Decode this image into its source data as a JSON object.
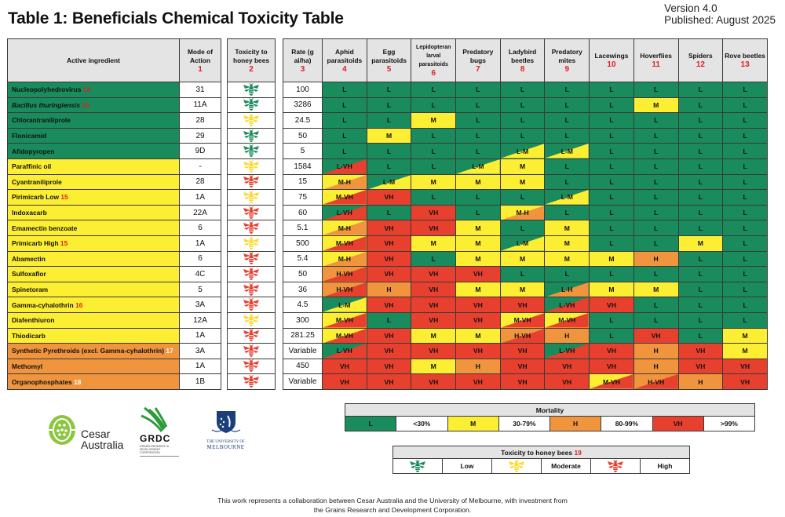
{
  "header": {
    "title": "Table 1: Beneficials Chemical Toxicity Table",
    "version": "Version 4.0",
    "published": "Published: August 2025"
  },
  "colors": {
    "L": "#198b5c",
    "M": "#fcee32",
    "H": "#f0953e",
    "VH": "#e8402e",
    "bee_low": "#198b5c",
    "bee_moderate": "#fcd92e",
    "bee_high": "#e8402e",
    "footnote_red": "#e02020"
  },
  "columns": {
    "active_ingredient": "Active ingredient",
    "mode_of_action": {
      "label": "Mode of Action",
      "num": "1"
    },
    "bee_toxicity": {
      "label": "Toxicity to honey bees",
      "num": "2"
    },
    "rate": {
      "label": "Rate (g ai/ha)",
      "num": "3"
    },
    "groups": [
      {
        "label": "Aphid parasitoids",
        "num": "4"
      },
      {
        "label": "Egg parasitoids",
        "num": "5"
      },
      {
        "label": "Lepidopteran larval parasitoids",
        "num": "6"
      },
      {
        "label": "Predatory bugs",
        "num": "7"
      },
      {
        "label": "Ladybird beetles",
        "num": "8"
      },
      {
        "label": "Predatory mites",
        "num": "9"
      },
      {
        "label": "Lacewings",
        "num": "10"
      },
      {
        "label": "Hoverflies",
        "num": "11"
      },
      {
        "label": "Spiders",
        "num": "12"
      },
      {
        "label": "Rove beetles",
        "num": "13"
      }
    ]
  },
  "rows": [
    {
      "name": "Nucleopolyhedrovirus",
      "note": "14",
      "note_color": "red",
      "italic": false,
      "row_color": "L",
      "moa": "31",
      "bee": "low",
      "rate": "100",
      "values": [
        "L",
        "L",
        "L",
        "L",
        "L",
        "L",
        "L",
        "L",
        "L",
        "L"
      ]
    },
    {
      "name": "Bacillus thuringiensis",
      "note": "14",
      "note_color": "red",
      "italic": true,
      "row_color": "L",
      "moa": "11A",
      "bee": "low",
      "rate": "3286",
      "values": [
        "L",
        "L",
        "L",
        "L",
        "L",
        "L",
        "L",
        "M",
        "L",
        "L"
      ]
    },
    {
      "name": "Chlorantraniliprole",
      "note": "",
      "note_color": "",
      "italic": false,
      "row_color": "L",
      "moa": "28",
      "bee": "moderate",
      "rate": "24.5",
      "values": [
        "L",
        "L",
        "M",
        "L",
        "L",
        "L",
        "L",
        "L",
        "L",
        "L"
      ]
    },
    {
      "name": "Flonicamid",
      "note": "",
      "note_color": "",
      "italic": false,
      "row_color": "L",
      "moa": "29",
      "bee": "low",
      "rate": "50",
      "values": [
        "L",
        "M",
        "L",
        "L",
        "L",
        "L",
        "L",
        "L",
        "L",
        "L"
      ]
    },
    {
      "name": "Afidopyropen",
      "note": "",
      "note_color": "",
      "italic": false,
      "row_color": "L",
      "moa": "9D",
      "bee": "low",
      "rate": "5",
      "values": [
        "L",
        "L",
        "L",
        "L",
        "L-M",
        "L-M",
        "L",
        "L",
        "L",
        "L"
      ]
    },
    {
      "name": "Paraffinic oil",
      "note": "",
      "note_color": "",
      "italic": false,
      "row_color": "M",
      "moa": "-",
      "bee": "moderate",
      "rate": "1584",
      "values": [
        "L-VH",
        "L",
        "L",
        "L-M",
        "M",
        "L",
        "L",
        "L",
        "L",
        "L"
      ]
    },
    {
      "name": "Cyantraniliprole",
      "note": "",
      "note_color": "",
      "italic": false,
      "row_color": "M",
      "moa": "28",
      "bee": "high",
      "rate": "15",
      "values": [
        "M-H",
        "L-M",
        "M",
        "M",
        "M",
        "L",
        "L",
        "L",
        "L",
        "L"
      ]
    },
    {
      "name": "Pirimicarb Low",
      "note": "15",
      "note_color": "red",
      "italic": false,
      "row_color": "M",
      "moa": "1A",
      "bee": "moderate",
      "rate": "75",
      "values": [
        "M-VH",
        "VH",
        "L",
        "L",
        "L",
        "L-M",
        "L",
        "L",
        "L",
        "L"
      ]
    },
    {
      "name": "Indoxacarb",
      "note": "",
      "note_color": "",
      "italic": false,
      "row_color": "M",
      "moa": "22A",
      "bee": "high",
      "rate": "60",
      "values": [
        "L-VH",
        "L",
        "VH",
        "L",
        "M-H",
        "L",
        "L",
        "L",
        "L",
        "L"
      ]
    },
    {
      "name": "Emamectin benzoate",
      "note": "",
      "note_color": "",
      "italic": false,
      "row_color": "M",
      "moa": "6",
      "bee": "high",
      "rate": "5.1",
      "values": [
        "M-H",
        "VH",
        "VH",
        "M",
        "L",
        "M",
        "L",
        "L",
        "L",
        "L"
      ]
    },
    {
      "name": "Primicarb High",
      "note": "15",
      "note_color": "red",
      "italic": false,
      "row_color": "M",
      "moa": "1A",
      "bee": "moderate",
      "rate": "500",
      "values": [
        "M-VH",
        "VH",
        "M",
        "M",
        "L-M",
        "M",
        "L",
        "L",
        "M",
        "L"
      ]
    },
    {
      "name": "Abamectin",
      "note": "",
      "note_color": "",
      "italic": false,
      "row_color": "M",
      "moa": "6",
      "bee": "high",
      "rate": "5.4",
      "values": [
        "M-H",
        "VH",
        "L",
        "M",
        "M",
        "M",
        "M",
        "H",
        "L",
        "L"
      ]
    },
    {
      "name": "Sulfoxaflor",
      "note": "",
      "note_color": "",
      "italic": false,
      "row_color": "M",
      "moa": "4C",
      "bee": "high",
      "rate": "50",
      "values": [
        "H-VH",
        "VH",
        "VH",
        "VH",
        "L",
        "L",
        "L",
        "L",
        "L",
        "L"
      ]
    },
    {
      "name": "Spinetoram",
      "note": "",
      "note_color": "",
      "italic": false,
      "row_color": "M",
      "moa": "5",
      "bee": "high",
      "rate": "36",
      "values": [
        "H-VH",
        "H",
        "VH",
        "M",
        "M",
        "L-H",
        "M",
        "M",
        "L",
        "L"
      ]
    },
    {
      "name": "Gamma-cyhalothrin",
      "note": "16",
      "note_color": "red",
      "italic": false,
      "row_color": "M",
      "moa": "3A",
      "bee": "high",
      "rate": "4.5",
      "values": [
        "L-M",
        "VH",
        "VH",
        "VH",
        "VH",
        "L-VH",
        "VH",
        "L",
        "L",
        "L"
      ]
    },
    {
      "name": "Diafenthiuron",
      "note": "",
      "note_color": "",
      "italic": false,
      "row_color": "M",
      "moa": "12A",
      "bee": "moderate",
      "rate": "300",
      "values": [
        "M-VH",
        "L",
        "VH",
        "VH",
        "M-VH",
        "M-VH",
        "L",
        "L",
        "L",
        "L"
      ]
    },
    {
      "name": "Thiodicarb",
      "note": "",
      "note_color": "",
      "italic": false,
      "row_color": "M",
      "moa": "1A",
      "bee": "high",
      "rate": "281.25",
      "values": [
        "M-VH",
        "VH",
        "M",
        "M",
        "H-VH",
        "H",
        "L",
        "VH",
        "L",
        "M"
      ]
    },
    {
      "name": "Synthetic Pyrethroids (excl. Gamma-cyhalothrin)",
      "note": "17",
      "note_color": "white",
      "italic": false,
      "row_color": "H",
      "moa": "3A",
      "bee": "high",
      "rate": "Variable",
      "values": [
        "L-VH",
        "VH",
        "VH",
        "VH",
        "VH",
        "L-VH",
        "VH",
        "H",
        "VH",
        "M"
      ]
    },
    {
      "name": "Methomyl",
      "note": "",
      "note_color": "",
      "italic": false,
      "row_color": "H",
      "moa": "1A",
      "bee": "high",
      "rate": "450",
      "values": [
        "VH",
        "VH",
        "M",
        "H",
        "VH",
        "VH",
        "VH",
        "H",
        "VH",
        "VH"
      ]
    },
    {
      "name": "Organophosphates",
      "note": "18",
      "note_color": "white",
      "italic": false,
      "row_color": "H",
      "moa": "1B",
      "bee": "high",
      "rate": "Variable",
      "values": [
        "VH",
        "VH",
        "VH",
        "VH",
        "VH",
        "VH",
        "M-VH",
        "H-VH",
        "H",
        "VH"
      ]
    }
  ],
  "legend_mortality": {
    "title": "Mortality",
    "items": [
      {
        "code": "L",
        "range": "<30%"
      },
      {
        "code": "M",
        "range": "30-79%"
      },
      {
        "code": "H",
        "range": "80-99%"
      },
      {
        "code": "VH",
        "range": ">99%"
      }
    ]
  },
  "legend_bees": {
    "title": "Toxicity to honey bees",
    "num": "19",
    "items": [
      {
        "level": "low",
        "label": "Low"
      },
      {
        "level": "moderate",
        "label": "Moderate"
      },
      {
        "level": "high",
        "label": "High"
      }
    ]
  },
  "logos": {
    "cesar_line1": "Cesar",
    "cesar_line2": "Australia",
    "grdc": "GRDC",
    "grdc_sub": "GRAINS RESEARCH & DEVELOPMENT CORPORATION",
    "unimelb_line1": "THE UNIVERSITY OF",
    "unimelb_line2": "MELBOURNE"
  },
  "footer": {
    "line1": "This work represents a collaboration between Cesar Australia and the University of Melbourne, with investment from",
    "line2": "the Grains Research and Development Corporation."
  }
}
